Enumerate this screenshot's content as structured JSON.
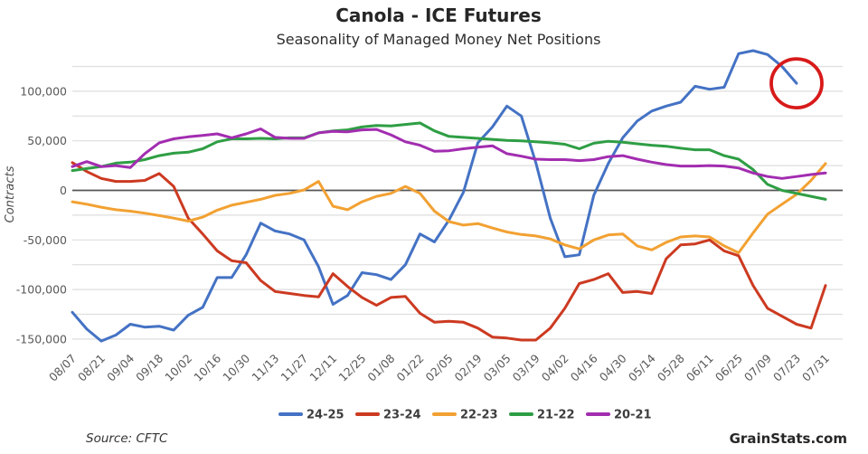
{
  "header": {
    "title": "Canola - ICE Futures",
    "subtitle": "Seasonality of Managed Money Net Positions"
  },
  "footer": {
    "source_label": "Source: CFTC",
    "branding_label": "GrainStats.com"
  },
  "annotation": {
    "shape": "ellipse",
    "color": "#D81A1A",
    "description": "red circle highlighting latest 24-25 data point",
    "week_index": 50,
    "x_label": "07/23",
    "value": 108000
  },
  "chart_data": {
    "type": "line",
    "title": "Canola - ICE Futures",
    "subtitle": "Seasonality of Managed Money Net Positions",
    "xlabel": "",
    "ylabel": "Contracts",
    "ylim": [
      -162000,
      148000
    ],
    "gridline_step": 25000,
    "grid": "on",
    "legend_position": "bottom",
    "x_resolution": "weekly points, tick labels every two weeks",
    "x_tick_labels": [
      "08/07",
      "08/21",
      "09/04",
      "09/18",
      "10/02",
      "10/16",
      "10/30",
      "11/13",
      "11/27",
      "12/11",
      "12/25",
      "01/08",
      "01/22",
      "02/05",
      "02/19",
      "03/05",
      "03/19",
      "04/02",
      "04/16",
      "04/30",
      "05/14",
      "05/28",
      "06/11",
      "06/25",
      "07/09",
      "07/23",
      "07/31"
    ],
    "y_tick_labels": [
      "100,000",
      "50,000",
      "0",
      "-50,000",
      "-100,000",
      "-150,000"
    ],
    "y_tick_values": [
      100000,
      50000,
      0,
      -50000,
      -100000,
      -150000
    ],
    "series": [
      {
        "name": "24-25",
        "color": "#4472C4",
        "values": [
          -123000,
          -140000,
          -152000,
          -146000,
          -135000,
          -138000,
          -137000,
          -141000,
          -126000,
          -118000,
          -88000,
          -88000,
          -65000,
          -33000,
          -41000,
          -44000,
          -50000,
          -77000,
          -115000,
          -106000,
          -83000,
          -85000,
          -90000,
          -75000,
          -44000,
          -52000,
          -30000,
          -2000,
          48000,
          64000,
          85000,
          75000,
          28000,
          -28000,
          -67000,
          -65000,
          -5000,
          27000,
          53000,
          70000,
          80000,
          85000,
          89000,
          105000,
          102000,
          104000,
          138000,
          141000,
          137000,
          125000,
          108000,
          null,
          null
        ]
      },
      {
        "name": "23-24",
        "color": "#CC3A21",
        "values": [
          28000,
          19000,
          12000,
          9000,
          9000,
          10000,
          17000,
          4000,
          -28000,
          -44000,
          -61000,
          -71000,
          -73000,
          -91000,
          -102000,
          -104000,
          -106000,
          -107500,
          -84000,
          -97000,
          -108000,
          -116000,
          -108000,
          -107000,
          -124000,
          -133000,
          -132000,
          -133000,
          -139000,
          -148000,
          -149000,
          -151000,
          -151000,
          -139000,
          -119000,
          -94000,
          -90000,
          -84000,
          -103000,
          -102000,
          -104000,
          -69000,
          -55000,
          -54000,
          -50000,
          -61000,
          -66000,
          -96000,
          -119000,
          -127000,
          -135000,
          -139000,
          -96000
        ]
      },
      {
        "name": "22-23",
        "color": "#F2A132",
        "values": [
          -11500,
          -14000,
          -17000,
          -19500,
          -21000,
          -23000,
          -25500,
          -28000,
          -31000,
          -27000,
          -20000,
          -15000,
          -12000,
          -9000,
          -5000,
          -3000,
          500,
          9000,
          -16000,
          -19500,
          -11500,
          -6000,
          -3000,
          4000,
          -3000,
          -21000,
          -31500,
          -35000,
          -33500,
          -38000,
          -42000,
          -44500,
          -46000,
          -49000,
          -55000,
          -59000,
          -50000,
          -45000,
          -44000,
          -56000,
          -60000,
          -52500,
          -47000,
          -46000,
          -47000,
          -56000,
          -63000,
          -43000,
          -24000,
          -14000,
          -4000,
          10000,
          27000
        ]
      },
      {
        "name": "21-22",
        "color": "#2E9E44",
        "values": [
          20000,
          22000,
          24000,
          27500,
          28500,
          31000,
          35000,
          37500,
          38500,
          42000,
          49000,
          52000,
          52000,
          52500,
          52000,
          53000,
          53000,
          58000,
          60000,
          61000,
          64000,
          65500,
          65000,
          66500,
          68000,
          60000,
          54500,
          53500,
          52500,
          51500,
          50500,
          50000,
          49000,
          48000,
          46500,
          42000,
          47500,
          49500,
          48500,
          47000,
          45500,
          44500,
          42500,
          41000,
          41000,
          35000,
          31500,
          21000,
          6000,
          0,
          -3000,
          -6000,
          -9000
        ]
      },
      {
        "name": "20-21",
        "color": "#A22DB0",
        "values": [
          24000,
          29000,
          24000,
          25000,
          23000,
          37000,
          48000,
          52000,
          54000,
          55500,
          57000,
          53000,
          57000,
          62000,
          53500,
          52500,
          52500,
          58000,
          59500,
          59000,
          61000,
          61500,
          56000,
          49000,
          45500,
          39500,
          40000,
          42000,
          43500,
          45000,
          37000,
          34500,
          31500,
          31000,
          31000,
          30000,
          31000,
          34000,
          35000,
          31500,
          28500,
          26000,
          24500,
          24500,
          25000,
          24500,
          22500,
          17500,
          14000,
          12000,
          14000,
          16000,
          17500
        ]
      }
    ]
  }
}
